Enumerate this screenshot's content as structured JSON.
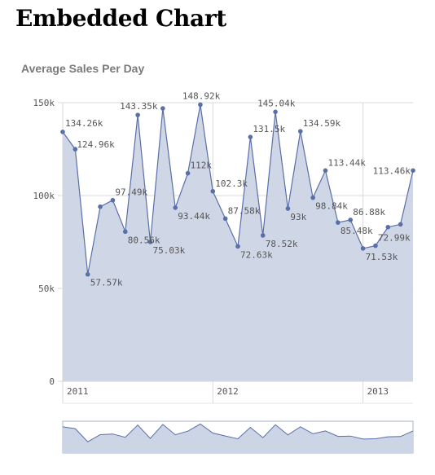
{
  "page": {
    "heading": "Embedded Chart"
  },
  "chart_data": {
    "type": "area",
    "title": "Average Sales Per Day",
    "xlabel": "",
    "ylabel": "",
    "ylim": [
      0,
      150000
    ],
    "y_ticks": [
      {
        "value": 0,
        "label": "0"
      },
      {
        "value": 50000,
        "label": "50k"
      },
      {
        "value": 100000,
        "label": "100k"
      },
      {
        "value": 150000,
        "label": "150k"
      }
    ],
    "x_ticks": [
      {
        "index": 0,
        "label": "2011"
      },
      {
        "index": 12,
        "label": "2012"
      },
      {
        "index": 24,
        "label": "2013"
      }
    ],
    "grid": true,
    "colors": {
      "line": "#5a6ea8",
      "fill": "#ccd5e5",
      "grid": "#d9d9d9",
      "text": "#555555"
    },
    "values": [
      134260,
      124960,
      57570,
      94000,
      97490,
      80560,
      143350,
      75030,
      146900,
      93440,
      112000,
      148920,
      102300,
      87580,
      72630,
      131500,
      78520,
      145040,
      93000,
      134590,
      98840,
      113440,
      85480,
      86880,
      71530,
      72990,
      83000,
      84500,
      113460
    ],
    "data_labels": [
      {
        "index": 0,
        "text": "134.26k"
      },
      {
        "index": 1,
        "text": "124.96k"
      },
      {
        "index": 2,
        "text": "57.57k"
      },
      {
        "index": 4,
        "text": "97.49k"
      },
      {
        "index": 5,
        "text": "80.56k"
      },
      {
        "index": 6,
        "text": "143.35k"
      },
      {
        "index": 7,
        "text": "75.03k"
      },
      {
        "index": 9,
        "text": "93.44k"
      },
      {
        "index": 10,
        "text": "112k"
      },
      {
        "index": 11,
        "text": "148.92k"
      },
      {
        "index": 12,
        "text": "102.3k"
      },
      {
        "index": 13,
        "text": "87.58k"
      },
      {
        "index": 14,
        "text": "72.63k"
      },
      {
        "index": 15,
        "text": "131.5k"
      },
      {
        "index": 16,
        "text": "78.52k"
      },
      {
        "index": 17,
        "text": "145.04k"
      },
      {
        "index": 18,
        "text": "93k"
      },
      {
        "index": 19,
        "text": "134.59k"
      },
      {
        "index": 20,
        "text": "98.84k"
      },
      {
        "index": 21,
        "text": "113.44k"
      },
      {
        "index": 22,
        "text": "85.48k"
      },
      {
        "index": 23,
        "text": "86.88k"
      },
      {
        "index": 24,
        "text": "71.53k"
      },
      {
        "index": 25,
        "text": "72.99k"
      },
      {
        "index": 28,
        "text": "113.46k"
      }
    ]
  }
}
